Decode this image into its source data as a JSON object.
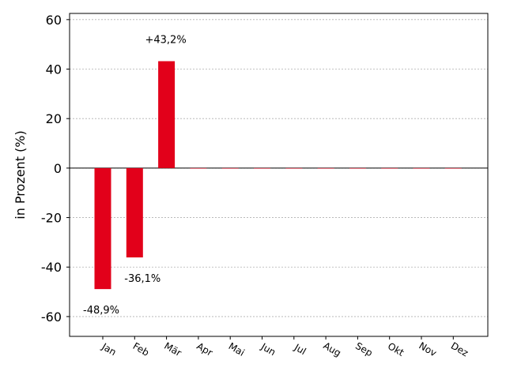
{
  "chart_data": {
    "type": "bar",
    "categories": [
      "Jan",
      "Feb",
      "Mär",
      "Apr",
      "Mai",
      "Jun",
      "Jul",
      "Aug",
      "Sep",
      "Okt",
      "Nov",
      "Dez"
    ],
    "values": [
      -48.9,
      -36.1,
      43.2,
      0,
      0,
      0,
      0,
      0,
      0,
      0,
      0,
      0
    ],
    "data_labels": [
      "-48,9%",
      "-36,1%",
      "+43,2%",
      "",
      "",
      "",
      "",
      "",
      "",
      "",
      "",
      ""
    ],
    "title": "",
    "xlabel": "",
    "ylabel": "in Prozent (%)",
    "ylim": [
      -68,
      62.5
    ],
    "yticks": [
      -60,
      -40,
      -20,
      0,
      20,
      40,
      60
    ],
    "grid": true,
    "bar_color": "#e2001a"
  }
}
